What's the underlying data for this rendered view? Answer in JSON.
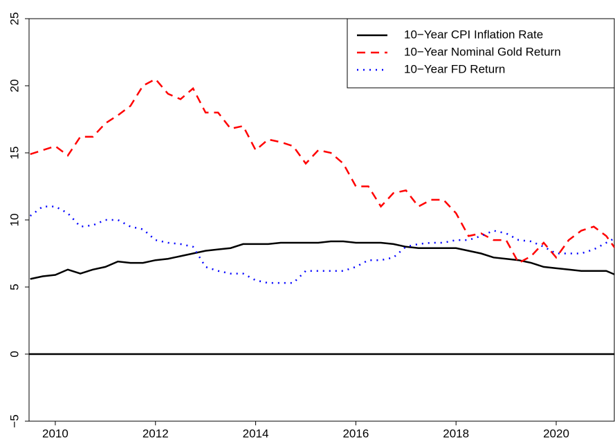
{
  "chart_data": {
    "type": "line",
    "x": [
      2009.5,
      2009.75,
      2010,
      2010.25,
      2010.5,
      2010.75,
      2011,
      2011.25,
      2011.5,
      2011.75,
      2012,
      2012.25,
      2012.5,
      2012.75,
      2013,
      2013.25,
      2013.5,
      2013.75,
      2014,
      2014.25,
      2014.5,
      2014.75,
      2015,
      2015.25,
      2015.5,
      2015.75,
      2016,
      2016.25,
      2016.5,
      2016.75,
      2017,
      2017.25,
      2017.5,
      2017.75,
      2018,
      2018.25,
      2018.5,
      2018.75,
      2019,
      2019.25,
      2019.5,
      2019.75,
      2020,
      2020.25,
      2020.5,
      2020.75,
      2021,
      2021.25
    ],
    "series": [
      {
        "name": "10−Year CPI Inflation Rate",
        "color": "#000000",
        "style": "solid",
        "values": [
          5.6,
          5.8,
          5.9,
          6.3,
          6.0,
          6.3,
          6.5,
          6.9,
          6.8,
          6.8,
          7.0,
          7.1,
          7.3,
          7.5,
          7.7,
          7.8,
          7.9,
          8.2,
          8.2,
          8.2,
          8.3,
          8.3,
          8.3,
          8.3,
          8.4,
          8.4,
          8.3,
          8.3,
          8.3,
          8.2,
          8.0,
          7.9,
          7.9,
          7.9,
          7.9,
          7.7,
          7.5,
          7.2,
          7.1,
          7.0,
          6.8,
          6.5,
          6.4,
          6.3,
          6.2,
          6.2,
          6.2,
          5.8
        ]
      },
      {
        "name": "10−Year Nominal Gold Return",
        "color": "#ff0000",
        "style": "dashed",
        "values": [
          14.9,
          15.2,
          15.5,
          14.8,
          16.2,
          16.2,
          17.2,
          17.8,
          18.5,
          20.0,
          20.5,
          19.4,
          19.0,
          19.8,
          18.0,
          18.0,
          16.8,
          17.0,
          15.2,
          16.0,
          15.8,
          15.5,
          14.2,
          15.2,
          15.0,
          14.2,
          12.5,
          12.5,
          11.0,
          12.0,
          12.2,
          11.0,
          11.5,
          11.5,
          10.5,
          8.8,
          9.0,
          8.5,
          8.5,
          6.8,
          7.3,
          8.3,
          7.2,
          8.5,
          9.2,
          9.5,
          8.8,
          7.5
        ]
      },
      {
        "name": "10−Year FD Return",
        "color": "#0000ff",
        "style": "dotted",
        "values": [
          10.3,
          11.0,
          11.0,
          10.5,
          9.5,
          9.6,
          10.0,
          10.0,
          9.5,
          9.3,
          8.5,
          8.3,
          8.2,
          8.0,
          6.5,
          6.2,
          6.0,
          6.0,
          5.5,
          5.3,
          5.3,
          5.3,
          6.2,
          6.2,
          6.2,
          6.2,
          6.5,
          7.0,
          7.0,
          7.2,
          8.0,
          8.2,
          8.3,
          8.3,
          8.5,
          8.5,
          8.8,
          9.2,
          9.0,
          8.5,
          8.4,
          8.0,
          7.5,
          7.5,
          7.5,
          7.8,
          8.3,
          8.8
        ]
      }
    ],
    "hline": 0,
    "xlim": [
      2009.476,
      2021.16
    ],
    "ylim": [
      -5,
      25
    ],
    "xticks": [
      2010,
      2012,
      2014,
      2016,
      2018,
      2020
    ],
    "yticks": [
      {
        "value": -5,
        "label": "−5"
      },
      0,
      5,
      10,
      15,
      20,
      25
    ],
    "legend": "top-right"
  }
}
